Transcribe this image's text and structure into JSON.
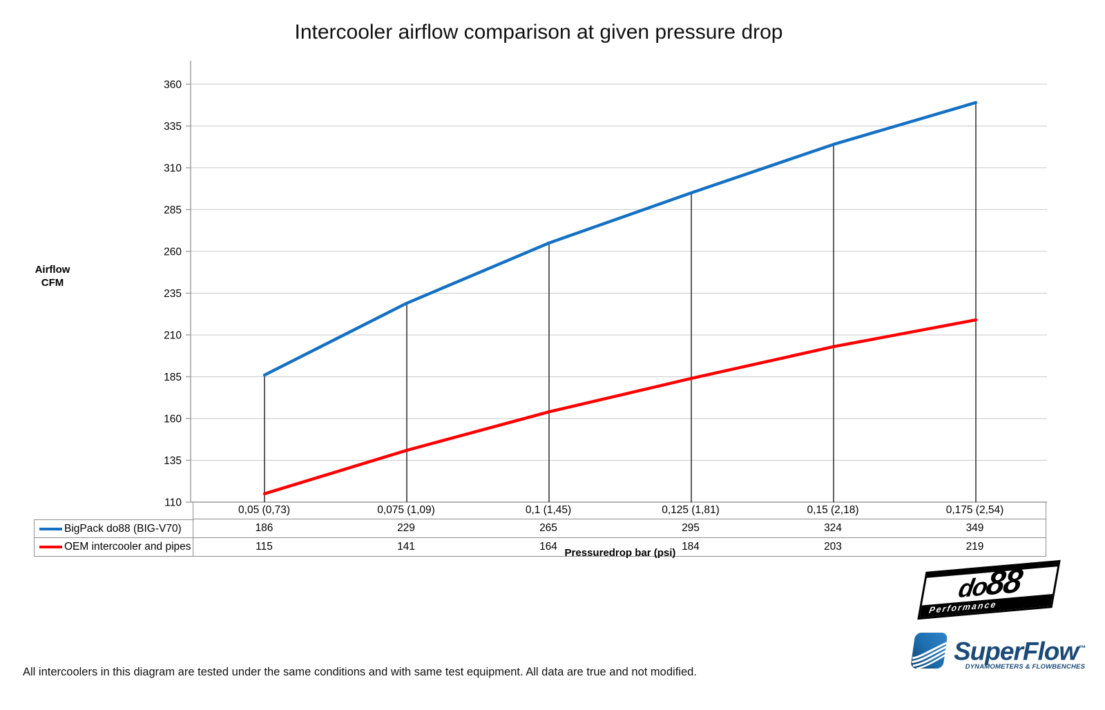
{
  "title": "Intercooler airflow comparison at given pressure drop",
  "footer": "All intercoolers in this diagram are tested under the same conditions and with same test equipment. All data are true and not modified.",
  "chart_data": {
    "type": "line",
    "title": "Intercooler airflow comparison at given pressure drop",
    "ylabel": "Airflow CFM",
    "xlabel": "Pressuredrop bar (psi)",
    "categories": [
      "0,05 (0,73)",
      "0,075 (1,09)",
      "0,1 (1,45)",
      "0,125 (1,81)",
      "0,15 (2,18)",
      "0,175 (2,54)"
    ],
    "series": [
      {
        "name": "BigPack do88 (BIG-V70)",
        "color": "#1470c4",
        "values": [
          186,
          229,
          265,
          295,
          324,
          349
        ]
      },
      {
        "name": "OEM intercooler and pipes",
        "color": "#fe0000",
        "values": [
          115,
          141,
          164,
          184,
          203,
          219
        ]
      }
    ],
    "y_ticks": [
      110,
      135,
      160,
      185,
      210,
      235,
      260,
      285,
      310,
      335,
      360
    ],
    "ylim": [
      110,
      374
    ],
    "grid": true,
    "drop_lines": true,
    "legend_position": "table-left"
  },
  "logos": {
    "do88": {
      "text_do": "do",
      "text_88": "88",
      "subtext": "Performance"
    },
    "superflow": {
      "text": "SuperFlow",
      "trademark": "™",
      "subtext": "DYNAMOMETERS & FLOWBENCHES"
    }
  },
  "colors": {
    "blue_series": "#1470c4",
    "red_series": "#fe0000",
    "gridline": "#c9c9c9",
    "axis": "#9a9a9a",
    "drop_line": "#1a1a1a",
    "table_border": "#8c8c8c",
    "superflow_navy": "#1a4a78",
    "superflow_blue": "#2176b9"
  }
}
